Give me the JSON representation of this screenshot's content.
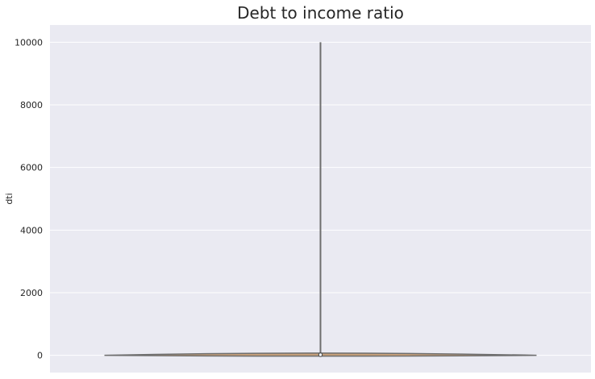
{
  "chart_data": {
    "type": "violin",
    "title": "Debt to income ratio",
    "xlabel": "",
    "ylabel": "dti",
    "ylim": [
      -550,
      10550
    ],
    "yticks": [
      0,
      2000,
      4000,
      6000,
      8000,
      10000
    ],
    "grid": true,
    "style": {
      "background": "#EAEAF2",
      "grid_color": "#FFFFFF",
      "violin_fill": "#C7A07A",
      "line_color": "#6E6E6E"
    },
    "series": [
      {
        "min": 0,
        "q1": 12,
        "median": 18,
        "q3": 25,
        "max": 9999,
        "density_peak_width_value": 90
      }
    ]
  }
}
